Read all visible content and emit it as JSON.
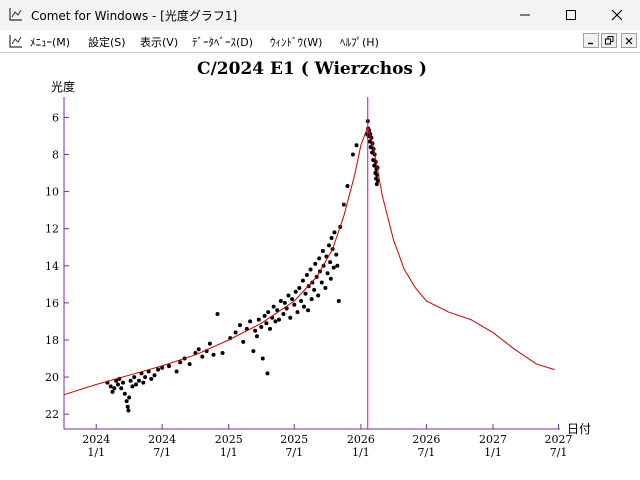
{
  "window": {
    "title": "Comet for Windows - [光度グラフ1]",
    "app_icon": "chart-icon"
  },
  "menu": {
    "items": [
      "ﾒﾆｭｰ(M)",
      "設定(S)",
      "表示(V)",
      "ﾃﾞｰﾀﾍﾞｰｽ(D)",
      "ｳｨﾝﾄﾞｳ(W)",
      "ﾍﾙﾌﾟ(H)"
    ]
  },
  "chart_data": {
    "type": "scatter",
    "title": "C/2024 E1 ( Wierzchos )",
    "ylabel": "光度",
    "xlabel": "日付",
    "y_inverted": true,
    "ylim": [
      22.8,
      4.9
    ],
    "y_ticks": [
      6,
      8,
      10,
      12,
      14,
      16,
      18,
      20,
      22
    ],
    "x_range": [
      "2023-10-04",
      "2027-07-05"
    ],
    "x_ticks": [
      {
        "date": "2024-01-01",
        "label": [
          "2024",
          "1/1"
        ]
      },
      {
        "date": "2024-07-01",
        "label": [
          "2024",
          "7/1"
        ]
      },
      {
        "date": "2025-01-01",
        "label": [
          "2025",
          "1/1"
        ]
      },
      {
        "date": "2025-07-01",
        "label": [
          "2025",
          "7/1"
        ]
      },
      {
        "date": "2026-01-01",
        "label": [
          "2026",
          "1/1"
        ]
      },
      {
        "date": "2026-07-01",
        "label": [
          "2026",
          "7/1"
        ]
      },
      {
        "date": "2027-01-01",
        "label": [
          "2027",
          "1/1"
        ]
      },
      {
        "date": "2027-07-01",
        "label": [
          "2027",
          "7/1"
        ]
      }
    ],
    "perihelion_marker": "2026-01-20",
    "colors": {
      "curve": "#cc0000",
      "marker": "#cc00cc",
      "axis": "#7030a0",
      "points": "#000000"
    },
    "predicted_curve": [
      {
        "date": "2023-10-04",
        "mag": 20.95
      },
      {
        "date": "2024-01-01",
        "mag": 20.4
      },
      {
        "date": "2024-04-01",
        "mag": 19.9
      },
      {
        "date": "2024-07-01",
        "mag": 19.4
      },
      {
        "date": "2024-10-01",
        "mag": 18.8
      },
      {
        "date": "2025-01-01",
        "mag": 18.0
      },
      {
        "date": "2025-04-01",
        "mag": 17.1
      },
      {
        "date": "2025-07-01",
        "mag": 15.9
      },
      {
        "date": "2025-09-01",
        "mag": 14.6
      },
      {
        "date": "2025-10-15",
        "mag": 13.1
      },
      {
        "date": "2025-11-15",
        "mag": 11.3
      },
      {
        "date": "2025-12-15",
        "mag": 9.1
      },
      {
        "date": "2026-01-01",
        "mag": 7.5
      },
      {
        "date": "2026-01-20",
        "mag": 6.5
      },
      {
        "date": "2026-02-05",
        "mag": 7.6
      },
      {
        "date": "2026-03-01",
        "mag": 10.2
      },
      {
        "date": "2026-04-01",
        "mag": 12.6
      },
      {
        "date": "2026-05-01",
        "mag": 14.2
      },
      {
        "date": "2026-06-01",
        "mag": 15.2
      },
      {
        "date": "2026-07-01",
        "mag": 15.9
      },
      {
        "date": "2026-09-01",
        "mag": 16.5
      },
      {
        "date": "2026-11-01",
        "mag": 16.9
      },
      {
        "date": "2027-01-01",
        "mag": 17.6
      },
      {
        "date": "2027-03-01",
        "mag": 18.5
      },
      {
        "date": "2027-05-01",
        "mag": 19.3
      },
      {
        "date": "2027-06-20",
        "mag": 19.6
      }
    ],
    "observations": [
      {
        "date": "2024-02-01",
        "mag": 20.3
      },
      {
        "date": "2024-02-10",
        "mag": 20.5
      },
      {
        "date": "2024-02-15",
        "mag": 20.8
      },
      {
        "date": "2024-02-20",
        "mag": 20.6
      },
      {
        "date": "2024-02-25",
        "mag": 20.2
      },
      {
        "date": "2024-03-01",
        "mag": 20.4
      },
      {
        "date": "2024-03-05",
        "mag": 20.1
      },
      {
        "date": "2024-03-10",
        "mag": 20.6
      },
      {
        "date": "2024-03-15",
        "mag": 20.3
      },
      {
        "date": "2024-03-20",
        "mag": 20.9
      },
      {
        "date": "2024-03-25",
        "mag": 21.3
      },
      {
        "date": "2024-03-28",
        "mag": 21.6
      },
      {
        "date": "2024-03-30",
        "mag": 21.8
      },
      {
        "date": "2024-04-01",
        "mag": 21.1
      },
      {
        "date": "2024-04-05",
        "mag": 20.2
      },
      {
        "date": "2024-04-10",
        "mag": 20.5
      },
      {
        "date": "2024-04-15",
        "mag": 20.0
      },
      {
        "date": "2024-04-20",
        "mag": 20.4
      },
      {
        "date": "2024-04-28",
        "mag": 20.2
      },
      {
        "date": "2024-05-05",
        "mag": 19.8
      },
      {
        "date": "2024-05-10",
        "mag": 20.3
      },
      {
        "date": "2024-05-15",
        "mag": 20.0
      },
      {
        "date": "2024-05-25",
        "mag": 19.7
      },
      {
        "date": "2024-06-01",
        "mag": 20.1
      },
      {
        "date": "2024-06-10",
        "mag": 19.9
      },
      {
        "date": "2024-06-20",
        "mag": 19.6
      },
      {
        "date": "2024-07-01",
        "mag": 19.5
      },
      {
        "date": "2024-07-20",
        "mag": 19.4
      },
      {
        "date": "2024-08-10",
        "mag": 19.7
      },
      {
        "date": "2024-08-20",
        "mag": 19.2
      },
      {
        "date": "2024-09-01",
        "mag": 19.0
      },
      {
        "date": "2024-09-15",
        "mag": 19.3
      },
      {
        "date": "2024-10-01",
        "mag": 18.7
      },
      {
        "date": "2024-10-10",
        "mag": 18.5
      },
      {
        "date": "2024-10-20",
        "mag": 18.9
      },
      {
        "date": "2024-11-01",
        "mag": 18.6
      },
      {
        "date": "2024-11-10",
        "mag": 18.2
      },
      {
        "date": "2024-11-20",
        "mag": 18.8
      },
      {
        "date": "2024-12-01",
        "mag": 16.6
      },
      {
        "date": "2024-12-15",
        "mag": 18.7
      },
      {
        "date": "2025-01-05",
        "mag": 17.9
      },
      {
        "date": "2025-01-20",
        "mag": 17.6
      },
      {
        "date": "2025-02-01",
        "mag": 17.2
      },
      {
        "date": "2025-02-10",
        "mag": 18.1
      },
      {
        "date": "2025-02-20",
        "mag": 17.4
      },
      {
        "date": "2025-03-01",
        "mag": 17.0
      },
      {
        "date": "2025-03-10",
        "mag": 18.6
      },
      {
        "date": "2025-03-15",
        "mag": 17.5
      },
      {
        "date": "2025-03-20",
        "mag": 17.8
      },
      {
        "date": "2025-03-25",
        "mag": 16.9
      },
      {
        "date": "2025-04-01",
        "mag": 17.3
      },
      {
        "date": "2025-04-05",
        "mag": 19.0
      },
      {
        "date": "2025-04-10",
        "mag": 16.7
      },
      {
        "date": "2025-04-15",
        "mag": 17.1
      },
      {
        "date": "2025-04-18",
        "mag": 19.8
      },
      {
        "date": "2025-04-20",
        "mag": 16.5
      },
      {
        "date": "2025-04-25",
        "mag": 17.4
      },
      {
        "date": "2025-05-01",
        "mag": 16.8
      },
      {
        "date": "2025-05-05",
        "mag": 16.2
      },
      {
        "date": "2025-05-10",
        "mag": 17.0
      },
      {
        "date": "2025-05-15",
        "mag": 16.4
      },
      {
        "date": "2025-05-20",
        "mag": 16.9
      },
      {
        "date": "2025-05-25",
        "mag": 15.9
      },
      {
        "date": "2025-06-01",
        "mag": 16.6
      },
      {
        "date": "2025-06-05",
        "mag": 16.0
      },
      {
        "date": "2025-06-10",
        "mag": 16.3
      },
      {
        "date": "2025-06-15",
        "mag": 15.6
      },
      {
        "date": "2025-06-20",
        "mag": 16.8
      },
      {
        "date": "2025-06-25",
        "mag": 15.8
      },
      {
        "date": "2025-07-01",
        "mag": 16.1
      },
      {
        "date": "2025-07-05",
        "mag": 15.4
      },
      {
        "date": "2025-07-10",
        "mag": 16.5
      },
      {
        "date": "2025-07-15",
        "mag": 15.2
      },
      {
        "date": "2025-07-20",
        "mag": 15.9
      },
      {
        "date": "2025-07-25",
        "mag": 14.8
      },
      {
        "date": "2025-07-28",
        "mag": 16.2
      },
      {
        "date": "2025-08-01",
        "mag": 15.5
      },
      {
        "date": "2025-08-05",
        "mag": 14.5
      },
      {
        "date": "2025-08-08",
        "mag": 16.4
      },
      {
        "date": "2025-08-10",
        "mag": 15.1
      },
      {
        "date": "2025-08-15",
        "mag": 14.2
      },
      {
        "date": "2025-08-18",
        "mag": 15.8
      },
      {
        "date": "2025-08-20",
        "mag": 14.9
      },
      {
        "date": "2025-08-25",
        "mag": 15.3
      },
      {
        "date": "2025-08-28",
        "mag": 13.9
      },
      {
        "date": "2025-09-01",
        "mag": 14.6
      },
      {
        "date": "2025-09-05",
        "mag": 15.6
      },
      {
        "date": "2025-09-08",
        "mag": 13.6
      },
      {
        "date": "2025-09-10",
        "mag": 14.3
      },
      {
        "date": "2025-09-15",
        "mag": 14.9
      },
      {
        "date": "2025-09-18",
        "mag": 13.2
      },
      {
        "date": "2025-09-20",
        "mag": 14.0
      },
      {
        "date": "2025-09-25",
        "mag": 15.2
      },
      {
        "date": "2025-09-28",
        "mag": 13.5
      },
      {
        "date": "2025-10-01",
        "mag": 14.4
      },
      {
        "date": "2025-10-05",
        "mag": 12.9
      },
      {
        "date": "2025-10-08",
        "mag": 13.8
      },
      {
        "date": "2025-10-10",
        "mag": 14.7
      },
      {
        "date": "2025-10-12",
        "mag": 12.5
      },
      {
        "date": "2025-10-15",
        "mag": 13.1
      },
      {
        "date": "2025-10-18",
        "mag": 14.1
      },
      {
        "date": "2025-10-20",
        "mag": 12.2
      },
      {
        "date": "2025-10-25",
        "mag": 13.4
      },
      {
        "date": "2025-10-28",
        "mag": 14.0
      },
      {
        "date": "2025-11-01",
        "mag": 15.9
      },
      {
        "date": "2025-11-05",
        "mag": 11.9
      },
      {
        "date": "2025-11-15",
        "mag": 10.7
      },
      {
        "date": "2025-11-25",
        "mag": 9.7
      },
      {
        "date": "2025-12-10",
        "mag": 8.0
      },
      {
        "date": "2025-12-20",
        "mag": 7.5
      },
      {
        "date": "2026-01-18",
        "mag": 6.9
      },
      {
        "date": "2026-01-20",
        "mag": 6.2
      },
      {
        "date": "2026-01-21",
        "mag": 6.6
      },
      {
        "date": "2026-01-22",
        "mag": 7.0
      },
      {
        "date": "2026-01-24",
        "mag": 6.7
      },
      {
        "date": "2026-01-25",
        "mag": 7.3
      },
      {
        "date": "2026-01-27",
        "mag": 6.9
      },
      {
        "date": "2026-01-28",
        "mag": 7.6
      },
      {
        "date": "2026-01-30",
        "mag": 7.1
      },
      {
        "date": "2026-02-01",
        "mag": 7.9
      },
      {
        "date": "2026-02-02",
        "mag": 7.4
      },
      {
        "date": "2026-02-04",
        "mag": 8.3
      },
      {
        "date": "2026-02-05",
        "mag": 7.7
      },
      {
        "date": "2026-02-07",
        "mag": 8.6
      },
      {
        "date": "2026-02-08",
        "mag": 8.0
      },
      {
        "date": "2026-02-10",
        "mag": 9.0
      },
      {
        "date": "2026-02-11",
        "mag": 8.4
      },
      {
        "date": "2026-02-12",
        "mag": 9.3
      },
      {
        "date": "2026-02-13",
        "mag": 8.8
      },
      {
        "date": "2026-02-14",
        "mag": 9.6
      },
      {
        "date": "2026-02-15",
        "mag": 9.1
      },
      {
        "date": "2026-02-16",
        "mag": 8.7
      },
      {
        "date": "2026-02-17",
        "mag": 9.4
      }
    ]
  }
}
